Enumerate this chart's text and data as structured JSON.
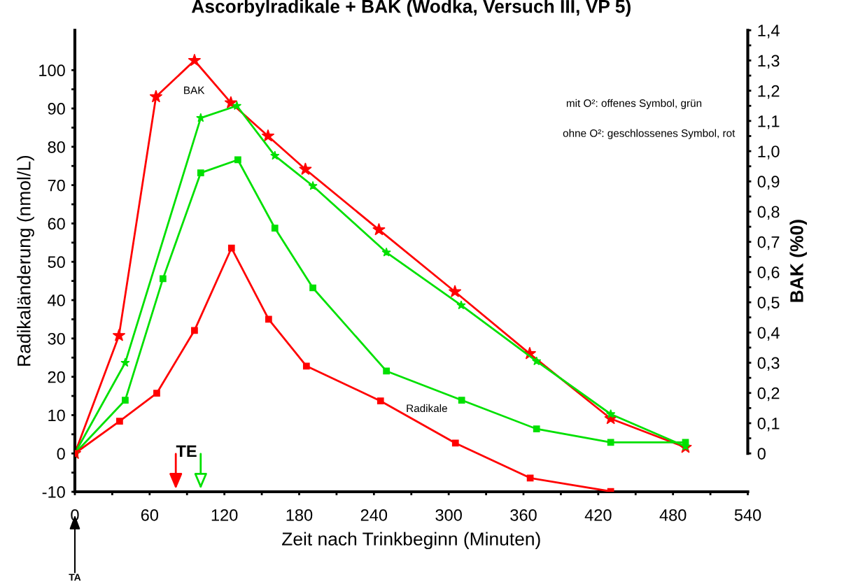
{
  "chart_data": {
    "type": "line",
    "title": "Ascorbylradikale + BAK (Wodka, Versuch III, VP 5)",
    "xlabel": "Zeit nach Trinkbeginn (Minuten)",
    "ylabel": "Radikaländerung (nmol/L)",
    "y2label": "BAK (%0)",
    "series": [
      {
        "color": "#ff0000",
        "axis": "y2",
        "marker": "star",
        "x": [
          0,
          35.4,
          65.1,
          96,
          125.2,
          155,
          185,
          244,
          305,
          365,
          430,
          490
        ],
        "values": [
          0,
          0.39,
          1.18,
          1.3,
          1.16,
          1.05,
          0.94,
          0.74,
          0.535,
          0.33,
          0.115,
          0.02
        ]
      },
      {
        "color": "#00e000",
        "axis": "y2",
        "marker": "star",
        "x": [
          0,
          40.4,
          101,
          130,
          160.5,
          191,
          250,
          310,
          370.5,
          430,
          490
        ],
        "values": [
          0,
          0.3,
          1.11,
          1.15,
          0.985,
          0.885,
          0.665,
          0.49,
          0.305,
          0.13,
          0.023
        ]
      },
      {
        "color": "#00e000",
        "marker": "square",
        "x": [
          0,
          40.4,
          70.7,
          101,
          130.8,
          160.5,
          191,
          250,
          310.4,
          370.5,
          430,
          490
        ],
        "values": [
          0,
          13.9,
          45.6,
          73.2,
          76.6,
          58.8,
          43.2,
          21.5,
          13.9,
          6.4,
          2.9,
          2.9
        ]
      },
      {
        "color": "#ff0000",
        "marker": "square",
        "x": [
          0,
          35.9,
          65.7,
          96,
          125.7,
          155.5,
          185.8,
          245.3,
          305.4,
          365.4,
          430
        ],
        "values": [
          0,
          8.4,
          15.7,
          32.1,
          53.6,
          35.0,
          22.8,
          13.7,
          2.7,
          -6.4,
          -9.9
        ]
      }
    ],
    "annotations": [
      "BAK",
      "Radikale",
      "TE",
      "TA",
      "mit O²: offenes Symbol, grün",
      "ohne O²: geschlossenes Symbol, rot"
    ],
    "xlim": [
      0,
      540
    ],
    "xticks": [
      0,
      {
        "value": 30,
        "label": null
      },
      60,
      {
        "value": 90,
        "label": null
      },
      120,
      {
        "value": 150,
        "label": null
      },
      180,
      {
        "value": 210,
        "label": null
      },
      240,
      {
        "value": 270,
        "label": null
      },
      300,
      {
        "value": 330,
        "label": null
      },
      360,
      {
        "value": 390,
        "label": null
      },
      420,
      {
        "value": 450,
        "label": null
      },
      480,
      {
        "value": 510,
        "label": null
      },
      540
    ],
    "ylim": [
      -10,
      110.4
    ],
    "yticks": [
      -10,
      {
        "value": -5,
        "label": null
      },
      0,
      {
        "value": 5,
        "label": null
      },
      10,
      {
        "value": 15,
        "label": null
      },
      20,
      {
        "value": 25,
        "label": null
      },
      30,
      {
        "value": 35,
        "label": null
      },
      40,
      {
        "value": 45,
        "label": null
      },
      50,
      {
        "value": 55,
        "label": null
      },
      60,
      {
        "value": 65,
        "label": null
      },
      70,
      {
        "value": 75,
        "label": null
      },
      80,
      {
        "value": 85,
        "label": null
      },
      90,
      {
        "value": 95,
        "label": null
      },
      100
    ],
    "y2lim": [
      -0.127,
      1.4
    ],
    "y2ticks": [
      {
        "value": 0,
        "label": "0"
      },
      {
        "value": 0.05,
        "label": null
      },
      {
        "value": 0.1,
        "label": "0,1"
      },
      {
        "value": 0.15,
        "label": null
      },
      {
        "value": 0.2,
        "label": "0,2"
      },
      {
        "value": 0.25,
        "label": null
      },
      {
        "value": 0.3,
        "label": "0,3"
      },
      {
        "value": 0.35,
        "label": null
      },
      {
        "value": 0.4,
        "label": "0,4"
      },
      {
        "value": 0.45,
        "label": null
      },
      {
        "value": 0.5,
        "label": "0,5"
      },
      {
        "value": 0.55,
        "label": null
      },
      {
        "value": 0.6,
        "label": "0,6"
      },
      {
        "value": 0.65,
        "label": null
      },
      {
        "value": 0.7,
        "label": "0,7"
      },
      {
        "value": 0.75,
        "label": null
      },
      {
        "value": 0.8,
        "label": "0,8"
      },
      {
        "value": 0.85,
        "label": null
      },
      {
        "value": 0.9,
        "label": "0,9"
      },
      {
        "value": 0.95,
        "label": null
      },
      {
        "value": 1.0,
        "label": "1,0"
      },
      {
        "value": 1.05,
        "label": null
      },
      {
        "value": 1.1,
        "label": "1,1"
      },
      {
        "value": 1.15,
        "label": null
      },
      {
        "value": 1.2,
        "label": "1,2"
      },
      {
        "value": 1.25,
        "label": null
      },
      {
        "value": 1.3,
        "label": "1,3"
      },
      {
        "value": 1.35,
        "label": null
      },
      {
        "value": 1.4,
        "label": "1,4"
      }
    ],
    "grid": false,
    "line_style": "solid"
  }
}
